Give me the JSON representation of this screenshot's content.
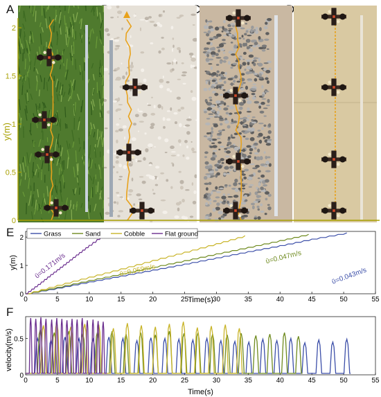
{
  "panels": [
    "A",
    "B",
    "C",
    "D",
    "E",
    "F"
  ],
  "photo_overlay": {
    "ylabel": "y(m)",
    "yticks": [
      0,
      0.5,
      1,
      1.5,
      2
    ],
    "tick_labels": [
      "0",
      "0.5",
      "1",
      "1.5",
      "2"
    ],
    "axis_color": "#a8a000"
  },
  "colors": {
    "grass": "#3b4ea8",
    "sand": "#6e8a1e",
    "cobble": "#c8b428",
    "flat": "#6a2d8e",
    "photo_grass": "#4f7a2e",
    "photo_sand": "#e6e1d8",
    "photo_cobble": "#8e8e8e",
    "photo_flat": "#d9c9a2"
  },
  "chart_data": [
    {
      "type": "line",
      "title": "",
      "xlabel": "Time(s)",
      "ylabel": "y(m)",
      "xlim": [
        0,
        55
      ],
      "ylim": [
        0,
        2.2
      ],
      "xticks": [
        0,
        5,
        10,
        15,
        20,
        25,
        30,
        35,
        40,
        45,
        50,
        55
      ],
      "yticks": [
        0,
        1,
        2
      ],
      "grid": false,
      "legend": "top-left",
      "series": [
        {
          "name": "Grass",
          "x": [
            0,
            5,
            10,
            15,
            20,
            25,
            30,
            35,
            40,
            45,
            50.5
          ],
          "y": [
            0,
            0.2,
            0.42,
            0.63,
            0.84,
            1.05,
            1.27,
            1.49,
            1.7,
            1.93,
            2.15
          ],
          "annotation": "ῡ=0.043m/s"
        },
        {
          "name": "Sand",
          "x": [
            0,
            5,
            10,
            15,
            20,
            25,
            30,
            35,
            40,
            44.5
          ],
          "y": [
            0,
            0.23,
            0.47,
            0.7,
            0.94,
            1.17,
            1.41,
            1.64,
            1.88,
            2.1
          ],
          "annotation": "ῡ=0.047m/s"
        },
        {
          "name": "Cobble",
          "x": [
            0,
            5,
            10,
            15,
            20,
            25,
            30,
            34.5
          ],
          "y": [
            0,
            0.3,
            0.59,
            0.88,
            1.18,
            1.47,
            1.77,
            2.05
          ],
          "annotation": "ῡ=0.059m/s"
        },
        {
          "name": "Flat ground",
          "x": [
            0,
            2,
            4,
            6,
            8,
            10,
            12.5
          ],
          "y": [
            0,
            0.33,
            0.68,
            1.02,
            1.37,
            1.71,
            2.12
          ],
          "annotation": "ῡ=0.171m/s"
        }
      ]
    },
    {
      "type": "line",
      "title": "",
      "xlabel": "Time(s)",
      "ylabel": "velocity(m/s)",
      "xlim": [
        0,
        55
      ],
      "ylim": [
        0,
        0.8
      ],
      "xticks": [
        0,
        5,
        10,
        15,
        20,
        25,
        30,
        35,
        40,
        45,
        50,
        55
      ],
      "yticks": [
        0,
        0.5
      ],
      "grid": false,
      "series": [
        {
          "name": "Grass",
          "peak_times": [
            1.9,
            4.0,
            6.2,
            8.4,
            10.6,
            13.1,
            15.3,
            17.5,
            19.7,
            21.9,
            24.1,
            26.3,
            28.5,
            30.7,
            32.9,
            35.1,
            37.3,
            39.5,
            41.7,
            43.9,
            46.1,
            48.3,
            50.5
          ],
          "peak_values": [
            0.5,
            0.48,
            0.52,
            0.5,
            0.49,
            0.52,
            0.5,
            0.47,
            0.51,
            0.5,
            0.49,
            0.48,
            0.5,
            0.47,
            0.46,
            0.45,
            0.49,
            0.47,
            0.5,
            0.44,
            0.48,
            0.45,
            0.49
          ]
        },
        {
          "name": "Sand",
          "peak_times": [
            2.3,
            4.5,
            6.8,
            9.0,
            11.3,
            13.6,
            15.8,
            18.1,
            20.4,
            22.6,
            24.9,
            27.1,
            29.4,
            31.7,
            33.9,
            36.2,
            38.4,
            40.7,
            42.9
          ],
          "peak_values": [
            0.62,
            0.58,
            0.6,
            0.57,
            0.59,
            0.6,
            0.56,
            0.58,
            0.55,
            0.6,
            0.57,
            0.58,
            0.56,
            0.55,
            0.57,
            0.54,
            0.56,
            0.58,
            0.53
          ]
        },
        {
          "name": "Cobble",
          "peak_times": [
            2.8,
            4.9,
            7.1,
            9.3,
            11.5,
            13.8,
            16.0,
            18.2,
            20.4,
            22.6,
            24.8,
            27.0,
            29.2,
            31.4,
            33.6
          ],
          "peak_values": [
            0.68,
            0.72,
            0.66,
            0.7,
            0.69,
            0.64,
            0.71,
            0.68,
            0.66,
            0.7,
            0.73,
            0.65,
            0.67,
            0.69,
            0.64
          ]
        },
        {
          "name": "Flat ground",
          "peak_times": [
            0.8,
            1.6,
            2.4,
            3.2,
            4.1,
            4.9,
            5.7,
            6.5,
            7.3,
            8.1,
            8.9,
            9.7,
            10.6,
            11.4,
            12.2
          ],
          "peak_values": [
            0.78,
            0.77,
            0.79,
            0.77,
            0.76,
            0.78,
            0.77,
            0.75,
            0.77,
            0.76,
            0.78,
            0.75,
            0.76,
            0.74,
            0.73
          ]
        }
      ]
    }
  ]
}
